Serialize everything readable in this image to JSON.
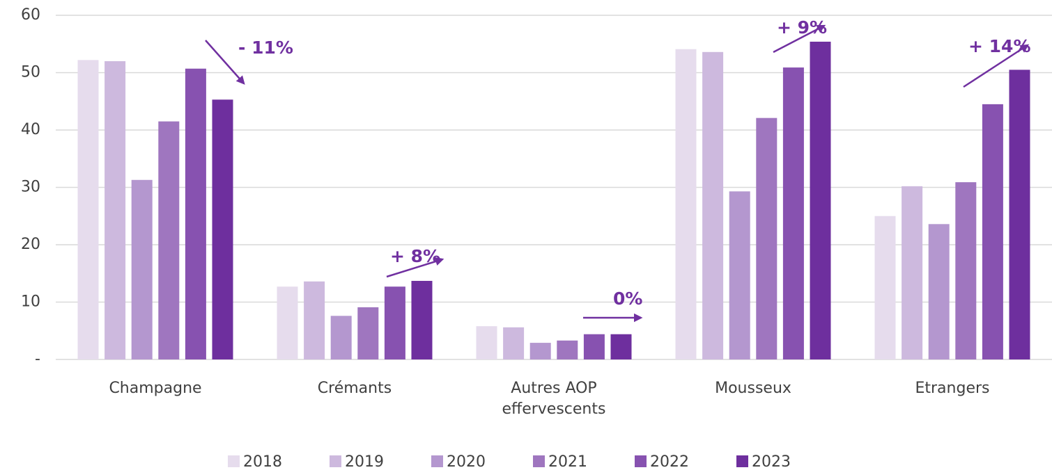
{
  "chart_data": {
    "type": "bar",
    "categories": [
      "Champagne",
      "Crémants",
      "Autres AOP effervescents",
      "Mousseux",
      "Etrangers"
    ],
    "series": [
      {
        "name": "2018",
        "color": "#e6dced",
        "values": [
          52.2,
          12.7,
          5.8,
          54.1,
          25.0
        ]
      },
      {
        "name": "2019",
        "color": "#cdb9de",
        "values": [
          52.0,
          13.6,
          5.6,
          53.6,
          30.2
        ]
      },
      {
        "name": "2020",
        "color": "#b497cf",
        "values": [
          31.3,
          7.6,
          2.9,
          29.3,
          23.6
        ]
      },
      {
        "name": "2021",
        "color": "#9f76bf",
        "values": [
          41.5,
          9.1,
          3.3,
          42.1,
          30.9
        ]
      },
      {
        "name": "2022",
        "color": "#8752b0",
        "values": [
          50.7,
          12.7,
          4.4,
          50.9,
          44.5
        ]
      },
      {
        "name": "2023",
        "color": "#6e2f9e",
        "values": [
          45.3,
          13.7,
          4.4,
          55.4,
          50.5
        ]
      }
    ],
    "ylim": [
      0,
      60
    ],
    "yticks": [
      {
        "value": 0,
        "label": "-"
      },
      10,
      20,
      30,
      40,
      50,
      60
    ],
    "grid": true,
    "legend": "bottom",
    "annotations": [
      "- 11%",
      "+ 8%",
      "0%",
      "+ 9%",
      "+ 14%"
    ],
    "annotation_color": "#7030a0"
  }
}
